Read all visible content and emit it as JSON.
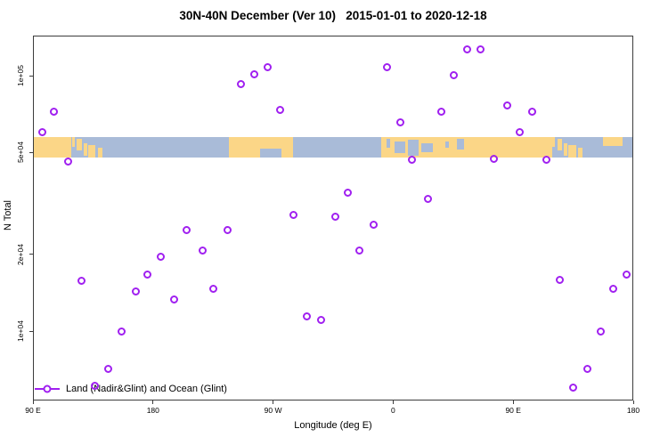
{
  "title": "30N-40N December (Ver 10)   2015-01-01 to 2020-12-18",
  "chart_data": {
    "type": "scatter",
    "title": "30N-40N December (Ver 10)   2015-01-01 to 2020-12-18",
    "xlabel": "Longitude (deg E)",
    "ylabel": "N Total",
    "x_axis": {
      "range": [
        0,
        450
      ],
      "wrap_note": "longitude axis runs 90E -> 180 -> 90W -> 0 -> 90E -> 180 (wraps around globe 1.25x)",
      "ticks": [
        {
          "pos": 0,
          "label": "90 E"
        },
        {
          "pos": 90,
          "label": "180"
        },
        {
          "pos": 180,
          "label": "90 W"
        },
        {
          "pos": 270,
          "label": "0"
        },
        {
          "pos": 360,
          "label": "90 E"
        },
        {
          "pos": 450,
          "label": "180"
        }
      ]
    },
    "y_axis": {
      "scale": "log",
      "range": [
        5350,
        143500
      ],
      "ticks": [
        {
          "value": 100000,
          "label": "1e+05"
        },
        {
          "value": 50000,
          "label": "5e+04"
        },
        {
          "value": 20000,
          "label": "2e+04"
        },
        {
          "value": 10000,
          "label": "1e+04"
        }
      ]
    },
    "legend": {
      "label": "Land (Nadir&Glint) and Ocean (Glint)",
      "marker": "open-circle-on-line",
      "color": "#A020F0"
    },
    "series": [
      {
        "name": "Land (Nadir&Glint) and Ocean (Glint)",
        "color": "#A020F0",
        "point_format": [
          "axis_position_deg_east_of_90E",
          "n_total"
        ],
        "points": [
          [
            6.7,
            60300
          ],
          [
            15.4,
            72500
          ],
          [
            26.7,
            46300
          ],
          [
            36.1,
            15800
          ],
          [
            46.1,
            6130
          ],
          [
            56.1,
            7140
          ],
          [
            66.1,
            10000
          ],
          [
            76.8,
            14350
          ],
          [
            85.5,
            16700
          ],
          [
            96.1,
            19600
          ],
          [
            105.5,
            13300
          ],
          [
            115.5,
            24800
          ],
          [
            126.9,
            20600
          ],
          [
            135.5,
            14600
          ],
          [
            145.6,
            24800
          ],
          [
            156.2,
            93000
          ],
          [
            165.6,
            101600
          ],
          [
            175.6,
            108300
          ],
          [
            185.6,
            73700
          ],
          [
            195.0,
            28600
          ],
          [
            205.6,
            11460
          ],
          [
            215.7,
            11100
          ],
          [
            227.0,
            28150
          ],
          [
            235.7,
            34700
          ],
          [
            244.4,
            20600
          ],
          [
            255.1,
            26000
          ],
          [
            265.7,
            108300
          ],
          [
            275.1,
            65900
          ],
          [
            284.4,
            47000
          ],
          [
            295.8,
            33050
          ],
          [
            305.8,
            72500
          ],
          [
            315.8,
            100800
          ],
          [
            325.8,
            127200
          ],
          [
            335.2,
            127200
          ],
          [
            345.8,
            47400
          ],
          [
            355.2,
            76700
          ],
          [
            365.2,
            60300
          ],
          [
            373.9,
            72500
          ],
          [
            384.6,
            47000
          ],
          [
            394.6,
            15900
          ],
          [
            404.6,
            6030
          ],
          [
            415.3,
            7140
          ],
          [
            425.3,
            9970
          ],
          [
            435.3,
            14600
          ],
          [
            444.7,
            16600
          ]
        ]
      }
    ],
    "map_band": {
      "description": "30N-40N latitude strip of world map drawn across plot",
      "n_top": 57500,
      "n_bottom": 47800,
      "ocean_color": "#A9BBD8",
      "land_color": "#FBD687",
      "land_segments": [
        [
          0,
          28.5
        ],
        [
          147,
          195
        ],
        [
          261,
          389
        ]
      ],
      "island_patches": [
        {
          "r": [
            29.5,
            31.5
          ],
          "v": [
            0.0,
            0.5
          ]
        },
        {
          "r": [
            33,
            36.5
          ],
          "v": [
            0.1,
            0.65
          ]
        },
        {
          "r": [
            38,
            40.5
          ],
          "v": [
            0.3,
            0.9
          ]
        },
        {
          "r": [
            41.5,
            47
          ],
          "v": [
            0.4,
            1.0
          ]
        },
        {
          "r": [
            48.5,
            52
          ],
          "v": [
            0.5,
            1.0
          ]
        },
        {
          "r": [
            389.5,
            391.5
          ],
          "v": [
            0.0,
            0.5
          ]
        },
        {
          "r": [
            393,
            396.5
          ],
          "v": [
            0.1,
            0.65
          ]
        },
        {
          "r": [
            398,
            400.5
          ],
          "v": [
            0.3,
            0.9
          ]
        },
        {
          "r": [
            401.5,
            407
          ],
          "v": [
            0.4,
            1.0
          ]
        },
        {
          "r": [
            408.5,
            412
          ],
          "v": [
            0.5,
            1.0
          ]
        },
        {
          "r": [
            427,
            442
          ],
          "v": [
            0.0,
            0.45
          ]
        }
      ],
      "sea_patches": [
        {
          "r": [
            170,
            186
          ],
          "v": [
            0.55,
            1.0
          ]
        },
        {
          "r": [
            265,
            268
          ],
          "v": [
            0.1,
            0.5
          ]
        },
        {
          "r": [
            271,
            279
          ],
          "v": [
            0.2,
            0.8
          ]
        },
        {
          "r": [
            281,
            289
          ],
          "v": [
            0.15,
            0.9
          ]
        },
        {
          "r": [
            291,
            300
          ],
          "v": [
            0.3,
            0.75
          ]
        },
        {
          "r": [
            309,
            312
          ],
          "v": [
            0.2,
            0.5
          ]
        },
        {
          "r": [
            318,
            323
          ],
          "v": [
            0.1,
            0.6
          ]
        }
      ]
    }
  }
}
